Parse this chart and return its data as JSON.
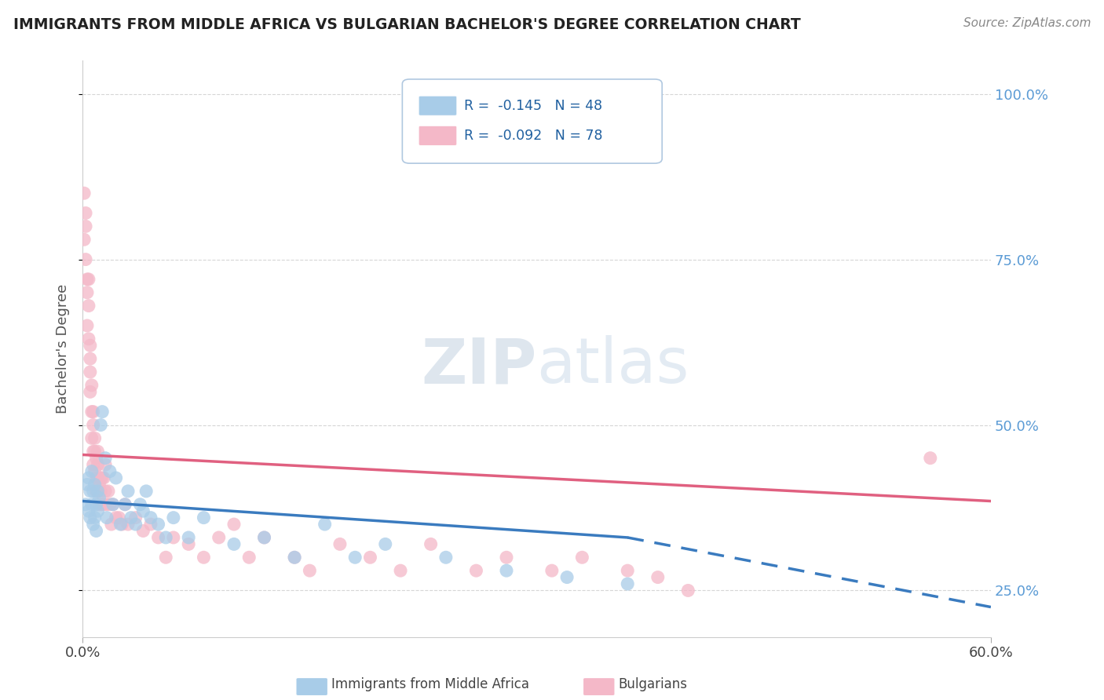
{
  "title": "IMMIGRANTS FROM MIDDLE AFRICA VS BULGARIAN BACHELOR'S DEGREE CORRELATION CHART",
  "source": "Source: ZipAtlas.com",
  "ylabel": "Bachelor's Degree",
  "yticks": [
    0.25,
    0.5,
    0.75,
    1.0
  ],
  "ytick_labels": [
    "25.0%",
    "50.0%",
    "75.0%",
    "100.0%"
  ],
  "xlim": [
    0.0,
    0.6
  ],
  "ylim": [
    0.18,
    1.05
  ],
  "blue_color": "#a8cce8",
  "pink_color": "#f4b8c8",
  "blue_line_color": "#3a7bbf",
  "pink_line_color": "#e06080",
  "blue_scatter_x": [
    0.002,
    0.003,
    0.004,
    0.004,
    0.005,
    0.005,
    0.006,
    0.006,
    0.007,
    0.007,
    0.008,
    0.008,
    0.009,
    0.009,
    0.01,
    0.01,
    0.011,
    0.012,
    0.013,
    0.015,
    0.016,
    0.018,
    0.02,
    0.022,
    0.025,
    0.028,
    0.03,
    0.032,
    0.035,
    0.038,
    0.04,
    0.042,
    0.045,
    0.05,
    0.055,
    0.06,
    0.07,
    0.08,
    0.1,
    0.12,
    0.14,
    0.16,
    0.18,
    0.2,
    0.24,
    0.28,
    0.32,
    0.36
  ],
  "blue_scatter_y": [
    0.38,
    0.41,
    0.37,
    0.42,
    0.36,
    0.4,
    0.38,
    0.43,
    0.35,
    0.4,
    0.36,
    0.41,
    0.38,
    0.34,
    0.37,
    0.4,
    0.39,
    0.5,
    0.52,
    0.45,
    0.36,
    0.43,
    0.38,
    0.42,
    0.35,
    0.38,
    0.4,
    0.36,
    0.35,
    0.38,
    0.37,
    0.4,
    0.36,
    0.35,
    0.33,
    0.36,
    0.33,
    0.36,
    0.32,
    0.33,
    0.3,
    0.35,
    0.3,
    0.32,
    0.3,
    0.28,
    0.27,
    0.26
  ],
  "pink_scatter_x": [
    0.001,
    0.001,
    0.002,
    0.002,
    0.002,
    0.003,
    0.003,
    0.003,
    0.004,
    0.004,
    0.004,
    0.005,
    0.005,
    0.005,
    0.005,
    0.006,
    0.006,
    0.006,
    0.007,
    0.007,
    0.007,
    0.007,
    0.008,
    0.008,
    0.008,
    0.009,
    0.009,
    0.009,
    0.01,
    0.01,
    0.01,
    0.01,
    0.011,
    0.011,
    0.012,
    0.012,
    0.013,
    0.013,
    0.014,
    0.014,
    0.015,
    0.015,
    0.016,
    0.017,
    0.018,
    0.019,
    0.02,
    0.022,
    0.024,
    0.026,
    0.028,
    0.03,
    0.035,
    0.04,
    0.045,
    0.05,
    0.055,
    0.06,
    0.07,
    0.08,
    0.09,
    0.1,
    0.11,
    0.12,
    0.14,
    0.15,
    0.17,
    0.19,
    0.21,
    0.23,
    0.26,
    0.28,
    0.31,
    0.33,
    0.36,
    0.38,
    0.4,
    0.56
  ],
  "pink_scatter_y": [
    0.85,
    0.78,
    0.82,
    0.75,
    0.8,
    0.7,
    0.72,
    0.65,
    0.68,
    0.63,
    0.72,
    0.58,
    0.62,
    0.55,
    0.6,
    0.52,
    0.56,
    0.48,
    0.5,
    0.46,
    0.52,
    0.44,
    0.48,
    0.43,
    0.46,
    0.42,
    0.45,
    0.4,
    0.44,
    0.42,
    0.4,
    0.46,
    0.38,
    0.41,
    0.4,
    0.42,
    0.38,
    0.42,
    0.38,
    0.42,
    0.4,
    0.44,
    0.38,
    0.4,
    0.38,
    0.35,
    0.38,
    0.36,
    0.36,
    0.35,
    0.38,
    0.35,
    0.36,
    0.34,
    0.35,
    0.33,
    0.3,
    0.33,
    0.32,
    0.3,
    0.33,
    0.35,
    0.3,
    0.33,
    0.3,
    0.28,
    0.32,
    0.3,
    0.28,
    0.32,
    0.28,
    0.3,
    0.28,
    0.3,
    0.28,
    0.27,
    0.25,
    0.45
  ],
  "blue_line_start_x": 0.0,
  "blue_line_start_y": 0.385,
  "blue_line_solid_end_x": 0.36,
  "blue_line_solid_end_y": 0.33,
  "blue_line_dash_end_x": 0.6,
  "blue_line_dash_end_y": 0.225,
  "pink_line_start_x": 0.0,
  "pink_line_start_y": 0.455,
  "pink_line_end_x": 0.6,
  "pink_line_end_y": 0.385
}
